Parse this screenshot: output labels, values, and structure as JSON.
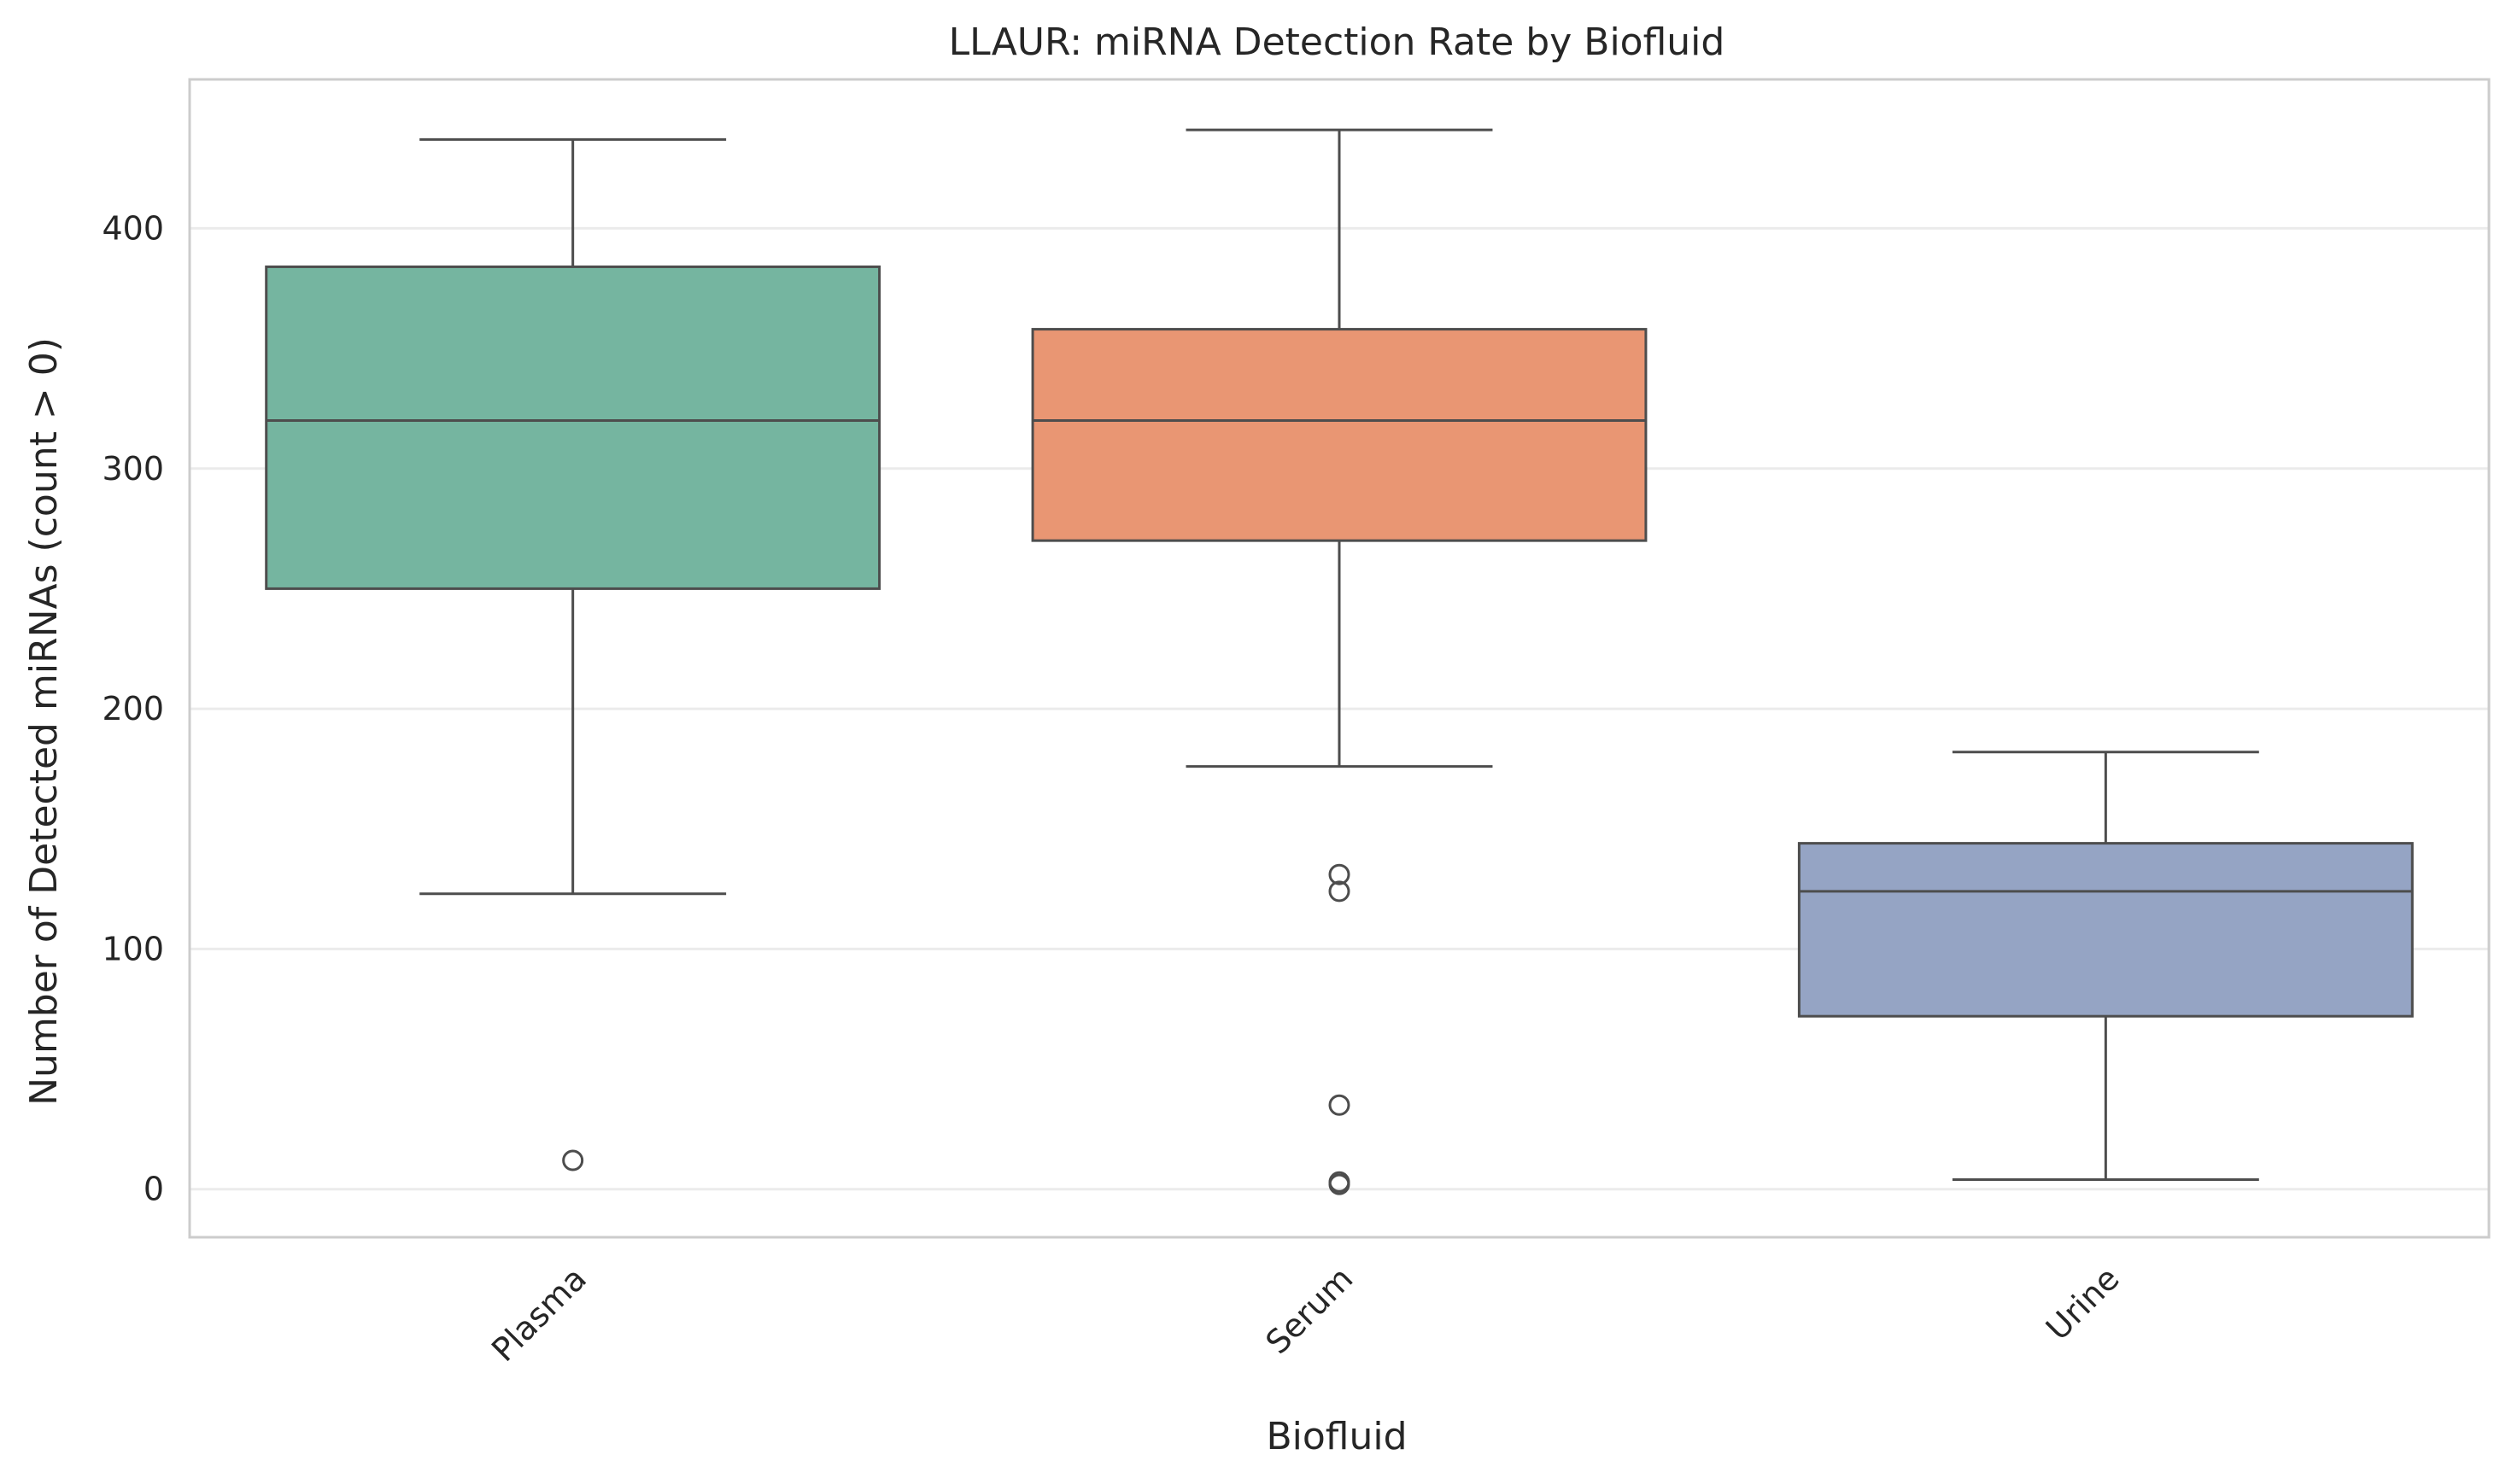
{
  "chart_data": {
    "type": "boxplot",
    "title": "LLAUR: miRNA Detection Rate by Biofluid",
    "xlabel": "Biofluid",
    "ylabel": "Number of Detected miRNAs (count > 0)",
    "categories": [
      "Plasma",
      "Serum",
      "Urine"
    ],
    "ylim": [
      -20,
      462
    ],
    "yticks": [
      0,
      100,
      200,
      300,
      400
    ],
    "grid": "horizontal",
    "legend": "none",
    "boxes": [
      {
        "category": "Plasma",
        "whisker_low": 123,
        "q1": 250,
        "median": 320,
        "q3": 384,
        "whisker_high": 437,
        "outliers": [
          12
        ],
        "color": "#75b5a0"
      },
      {
        "category": "Serum",
        "whisker_low": 176,
        "q1": 270,
        "median": 320,
        "q3": 358,
        "whisker_high": 441,
        "outliers": [
          131,
          124,
          35,
          3,
          2
        ],
        "color": "#e99673"
      },
      {
        "category": "Urine",
        "whisker_low": 4,
        "q1": 72,
        "median": 124,
        "q3": 144,
        "whisker_high": 182,
        "outliers": [],
        "color": "#95a4c4"
      }
    ]
  }
}
